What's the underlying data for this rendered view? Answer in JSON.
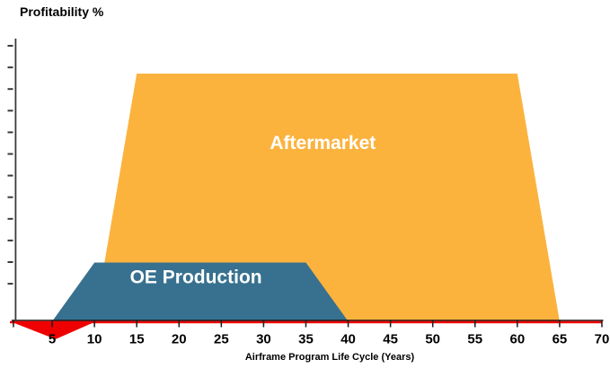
{
  "page": {
    "background": "#ffffff"
  },
  "chart_data": {
    "type": "area",
    "title": "Profitability %",
    "xlabel": "Airframe Program Life Cycle (Years)",
    "x_range": [
      0,
      70
    ],
    "x_ticks": [
      5,
      10,
      15,
      20,
      25,
      30,
      35,
      40,
      45,
      50,
      55,
      60,
      65,
      70
    ],
    "y_range": [
      -10,
      110
    ],
    "y_axis": {
      "labeled": false,
      "tick_count": 12
    },
    "grid": false,
    "legend": "none",
    "baseline_color": "#EE0000",
    "axis_color": "#1a1a1a",
    "series": [
      {
        "name": "aftermarket",
        "label": "Aftermarket",
        "shape": "trapezoid",
        "color": "#FBB33E",
        "label_color": "#FFFFFF",
        "label_size": 21,
        "points": [
          [
            10,
            0
          ],
          [
            15,
            97
          ],
          [
            60,
            97
          ],
          [
            65,
            0
          ]
        ],
        "label_at": [
          37,
          69.5
        ]
      },
      {
        "name": "oe-production",
        "label": "OE Production",
        "shape": "trapezoid",
        "color": "#38718F",
        "label_color": "#FFFFFF",
        "label_size": 21,
        "points": [
          [
            5,
            0
          ],
          [
            10,
            23
          ],
          [
            35,
            23
          ],
          [
            40,
            0
          ]
        ],
        "label_at": [
          22,
          16.9
        ]
      },
      {
        "name": "early-loss",
        "label": "",
        "shape": "triangle-below-axis",
        "color": "#EE0000",
        "label_color": "#EE0000",
        "label_size": 0,
        "points": [
          [
            0,
            0
          ],
          [
            5.4,
            -7
          ],
          [
            10.2,
            0
          ]
        ],
        "label_at": [
          5,
          -4
        ]
      }
    ]
  }
}
